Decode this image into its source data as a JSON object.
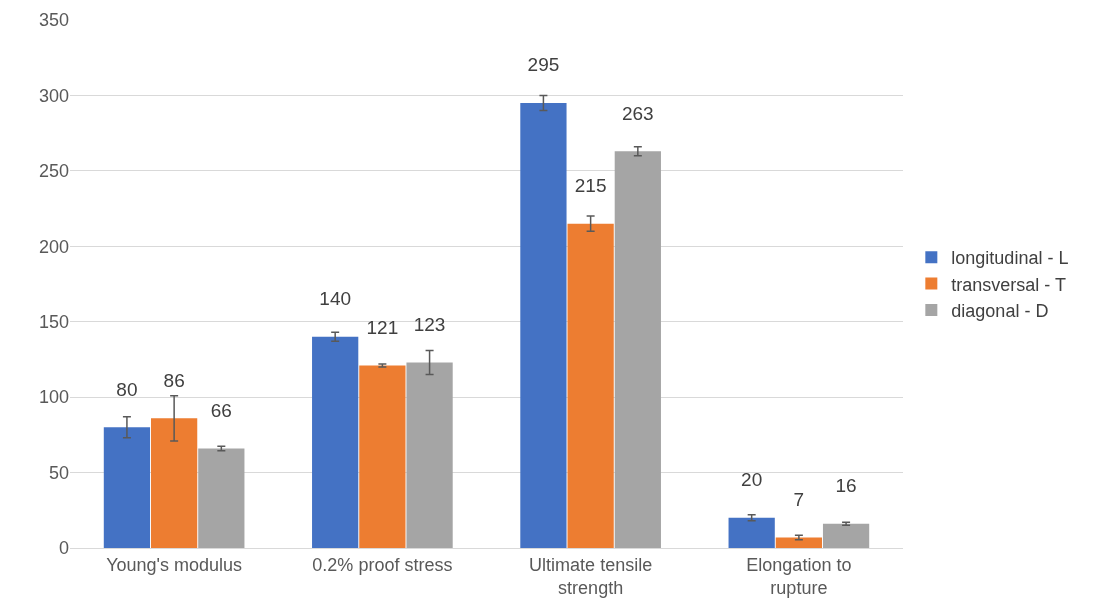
{
  "chart_data": {
    "type": "bar",
    "categories": [
      "Young's modulus",
      "0.2% proof stress",
      "Ultimate tensile strength",
      "Elongation to rupture"
    ],
    "series": [
      {
        "name": "longitudinal - L",
        "color": "#4472c4",
        "values": [
          80,
          140,
          295,
          20
        ],
        "errors": [
          7,
          3,
          5,
          2
        ]
      },
      {
        "name": "transversal - T",
        "color": "#ed7d31",
        "values": [
          86,
          121,
          215,
          7
        ],
        "errors": [
          15,
          1,
          5,
          1.5
        ]
      },
      {
        "name": "diagonal - D",
        "color": "#a5a5a5",
        "values": [
          66,
          123,
          263,
          16
        ],
        "errors": [
          1.5,
          8,
          3,
          1
        ]
      }
    ],
    "ylim": [
      0,
      350
    ],
    "yticks": [
      0,
      50,
      100,
      150,
      200,
      250,
      300,
      350
    ],
    "grid": "y",
    "legend": "right",
    "data_labels": true
  }
}
